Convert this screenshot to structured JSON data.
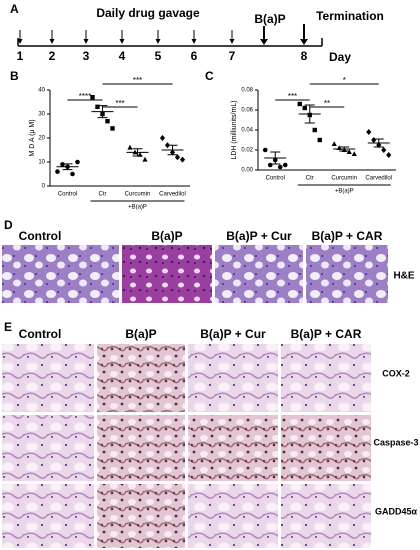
{
  "panel_labels": [
    "A",
    "B",
    "C",
    "D",
    "E"
  ],
  "timeline": {
    "title": "Daily drug gavage",
    "days": [
      "1",
      "2",
      "3",
      "4",
      "5",
      "6",
      "7",
      "8"
    ],
    "event": "B(a)P",
    "end": "Termination",
    "unit": "Day"
  },
  "chart_data": [
    {
      "type": "scatter",
      "ylabel": "M D A (μ M)",
      "categories": [
        "Control",
        "Ctr",
        "Curcumin",
        "Carvedilol"
      ],
      "group_label": "+B(a)P",
      "points": [
        [
          6,
          9,
          8,
          5,
          10
        ],
        [
          37,
          33,
          30,
          27,
          24
        ],
        [
          16,
          14,
          13,
          11
        ],
        [
          20,
          17,
          14,
          12,
          11
        ]
      ],
      "means": [
        8,
        31,
        14,
        15
      ],
      "errors": [
        1.2,
        2.5,
        1.5,
        2
      ],
      "ylim": [
        0,
        40
      ],
      "yticks": [
        0,
        10,
        20,
        30,
        40
      ],
      "annotations": [
        "****",
        "***",
        "***"
      ],
      "color": "#000000"
    },
    {
      "type": "scatter",
      "ylabel": "LDH (milliunits/mL)",
      "categories": [
        "Control",
        "Ctr",
        "Curcumin",
        "Carvedilol"
      ],
      "group_label": "+B(a)P",
      "points": [
        [
          0.02,
          0.005,
          0.01,
          0.003,
          0.005
        ],
        [
          0.066,
          0.062,
          0.055,
          0.04,
          0.03
        ],
        [
          0.026,
          0.022,
          0.02,
          0.018,
          0.016
        ],
        [
          0.038,
          0.03,
          0.025,
          0.02,
          0.015
        ]
      ],
      "means": [
        0.012,
        0.056,
        0.021,
        0.027
      ],
      "errors": [
        0.006,
        0.009,
        0.002,
        0.004
      ],
      "ylim": [
        0,
        0.08
      ],
      "yticks": [
        {
          "value": 0,
          "label": "0.00"
        },
        {
          "value": 0.02,
          "label": "0.02"
        },
        {
          "value": 0.04,
          "label": "0.04"
        },
        {
          "value": 0.06,
          "label": "0.06"
        },
        {
          "value": 0.08,
          "label": "0.08"
        }
      ],
      "annotations": [
        "***",
        "**",
        "*"
      ],
      "color": "#000000"
    }
  ],
  "histology": {
    "he_columns": [
      "Control",
      "B(a)P",
      "B(a)P + Cur",
      "B(a)P + CAR"
    ],
    "he_label": "H&E",
    "ihc_columns": [
      "Control",
      "B(a)P",
      "B(a)P + Cur",
      "B(a)P + CAR"
    ],
    "stains": [
      "COX-2",
      "Caspase-3",
      "GADD45α"
    ]
  }
}
